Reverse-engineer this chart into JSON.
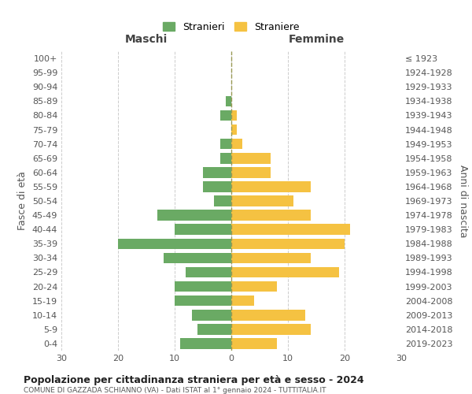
{
  "age_groups": [
    "0-4",
    "5-9",
    "10-14",
    "15-19",
    "20-24",
    "25-29",
    "30-34",
    "35-39",
    "40-44",
    "45-49",
    "50-54",
    "55-59",
    "60-64",
    "65-69",
    "70-74",
    "75-79",
    "80-84",
    "85-89",
    "90-94",
    "95-99",
    "100+"
  ],
  "birth_years": [
    "2019-2023",
    "2014-2018",
    "2009-2013",
    "2004-2008",
    "1999-2003",
    "1994-1998",
    "1989-1993",
    "1984-1988",
    "1979-1983",
    "1974-1978",
    "1969-1973",
    "1964-1968",
    "1959-1963",
    "1954-1958",
    "1949-1953",
    "1944-1948",
    "1939-1943",
    "1934-1938",
    "1929-1933",
    "1924-1928",
    "≤ 1923"
  ],
  "males": [
    9,
    6,
    7,
    10,
    10,
    8,
    12,
    20,
    10,
    13,
    3,
    5,
    5,
    2,
    2,
    0,
    2,
    1,
    0,
    0,
    0
  ],
  "females": [
    8,
    14,
    13,
    4,
    8,
    19,
    14,
    20,
    21,
    14,
    11,
    14,
    7,
    7,
    2,
    1,
    1,
    0,
    0,
    0,
    0
  ],
  "male_color": "#6aaa64",
  "female_color": "#f5c242",
  "male_label": "Stranieri",
  "female_label": "Straniere",
  "title": "Popolazione per cittadinanza straniera per età e sesso - 2024",
  "subtitle": "COMUNE DI GAZZADA SCHIANNO (VA) - Dati ISTAT al 1° gennaio 2024 - TUTTITALIA.IT",
  "xlabel_left": "Maschi",
  "xlabel_right": "Femmine",
  "ylabel_left": "Fasce di età",
  "ylabel_right": "Anni di nascita",
  "xlim": 30,
  "background_color": "#ffffff",
  "grid_color": "#cccccc"
}
